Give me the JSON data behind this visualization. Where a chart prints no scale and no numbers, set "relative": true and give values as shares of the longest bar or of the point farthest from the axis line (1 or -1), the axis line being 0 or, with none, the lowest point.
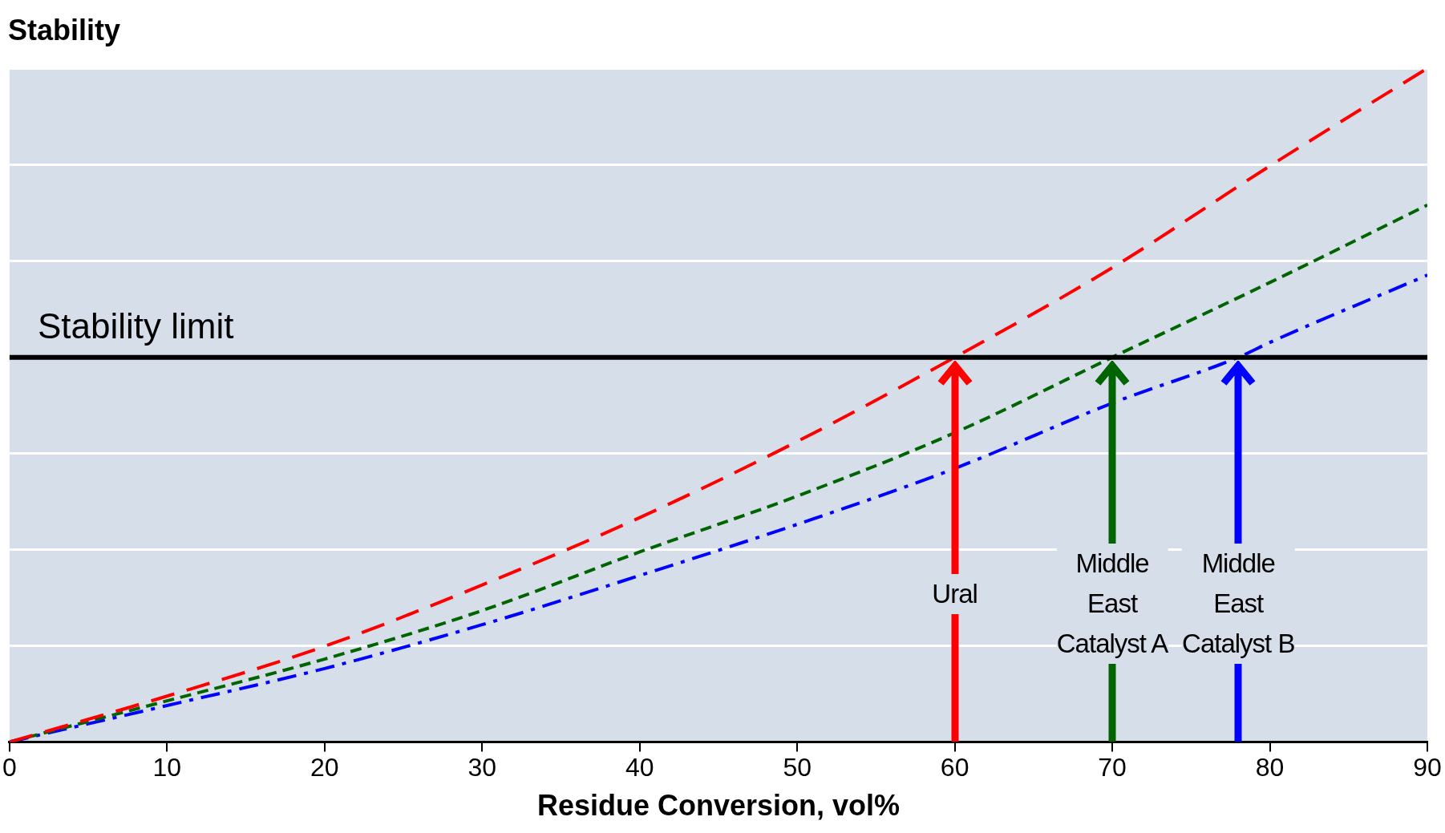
{
  "chart_data": {
    "type": "line",
    "ylabel": "Stability",
    "xlabel": "Residue Conversion, vol%",
    "relative": true,
    "xlim": [
      0,
      90
    ],
    "xticks": [
      0,
      10,
      20,
      30,
      40,
      50,
      60,
      70,
      80,
      90
    ],
    "grid": "y",
    "legend": false,
    "marker": "none",
    "series": [
      {
        "color": "#ff0000",
        "line_style": "dashed",
        "x": [
          0,
          10,
          20,
          30,
          40,
          50,
          60,
          70,
          80,
          90
        ],
        "values": [
          0,
          0.068,
          0.142,
          0.233,
          0.333,
          0.446,
          0.571,
          0.704,
          0.855,
          1
        ]
      },
      {
        "color": "#006400",
        "line_style": "dotted",
        "x": [
          0,
          10,
          20,
          30,
          40,
          50,
          60,
          70,
          80,
          90
        ],
        "values": [
          0,
          0.061,
          0.123,
          0.195,
          0.282,
          0.365,
          0.459,
          0.571,
          0.682,
          0.797
        ]
      },
      {
        "color": "#0000ff",
        "line_style": "dashdot",
        "x": [
          0,
          10,
          20,
          30,
          40,
          50,
          60,
          70,
          78,
          80,
          90
        ],
        "values": [
          0,
          0.054,
          0.109,
          0.174,
          0.247,
          0.323,
          0.406,
          0.503,
          0.571,
          0.593,
          0.693
        ]
      }
    ],
    "ref_lines": [
      {
        "axis": "y",
        "value": 0.571,
        "label": "Stability limit",
        "color": "#000000"
      }
    ],
    "annotations": [
      "Ural",
      "Middle\nEast\nCatalyst A",
      "Middle\nEast\nCatalyst B"
    ]
  }
}
